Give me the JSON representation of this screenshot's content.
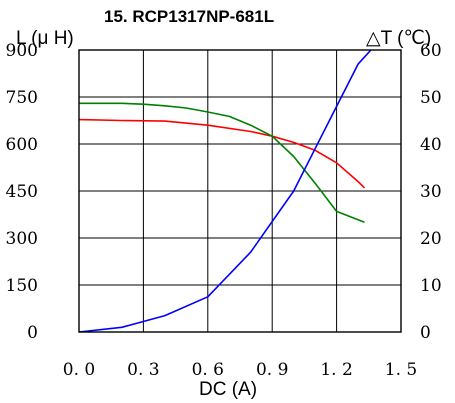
{
  "chart_data": {
    "type": "line",
    "title": "15. RCP1317NP-681L",
    "xlabel": "DC (A)",
    "ylabel_left": "L (μ H)",
    "ylabel_right": "△T (℃)",
    "xlim": [
      0,
      1.5
    ],
    "ylim_left": [
      0,
      900
    ],
    "ylim_right": [
      0,
      60
    ],
    "x_ticks": [
      "0. 0",
      "0. 3",
      "0. 6",
      "0. 9",
      "1. 2",
      "1. 5"
    ],
    "y_left_ticks": [
      "0",
      "150",
      "300",
      "450",
      "600",
      "750",
      "900"
    ],
    "y_right_ticks": [
      "0",
      "10",
      "20",
      "30",
      "40",
      "50",
      "60"
    ],
    "grid": true,
    "series": [
      {
        "axis": "left",
        "color": "#ff0000",
        "x": [
          0,
          0.2,
          0.4,
          0.6,
          0.8,
          0.9,
          1.0,
          1.1,
          1.2,
          1.3,
          1.33
        ],
        "y": [
          678,
          675,
          673,
          660,
          640,
          625,
          605,
          580,
          540,
          480,
          460
        ]
      },
      {
        "axis": "left",
        "color": "#008000",
        "x": [
          0,
          0.2,
          0.3,
          0.4,
          0.5,
          0.6,
          0.7,
          0.8,
          0.9,
          1.0,
          1.1,
          1.2,
          1.33
        ],
        "y": [
          730,
          730,
          727,
          722,
          715,
          702,
          688,
          660,
          625,
          560,
          475,
          385,
          350
        ]
      },
      {
        "axis": "right",
        "color": "#0000ff",
        "x": [
          0,
          0.2,
          0.4,
          0.6,
          0.8,
          1.0,
          1.1,
          1.2,
          1.3,
          1.36
        ],
        "y": [
          0,
          1,
          3.5,
          7.5,
          17,
          30,
          39,
          48,
          57,
          60
        ]
      }
    ]
  }
}
